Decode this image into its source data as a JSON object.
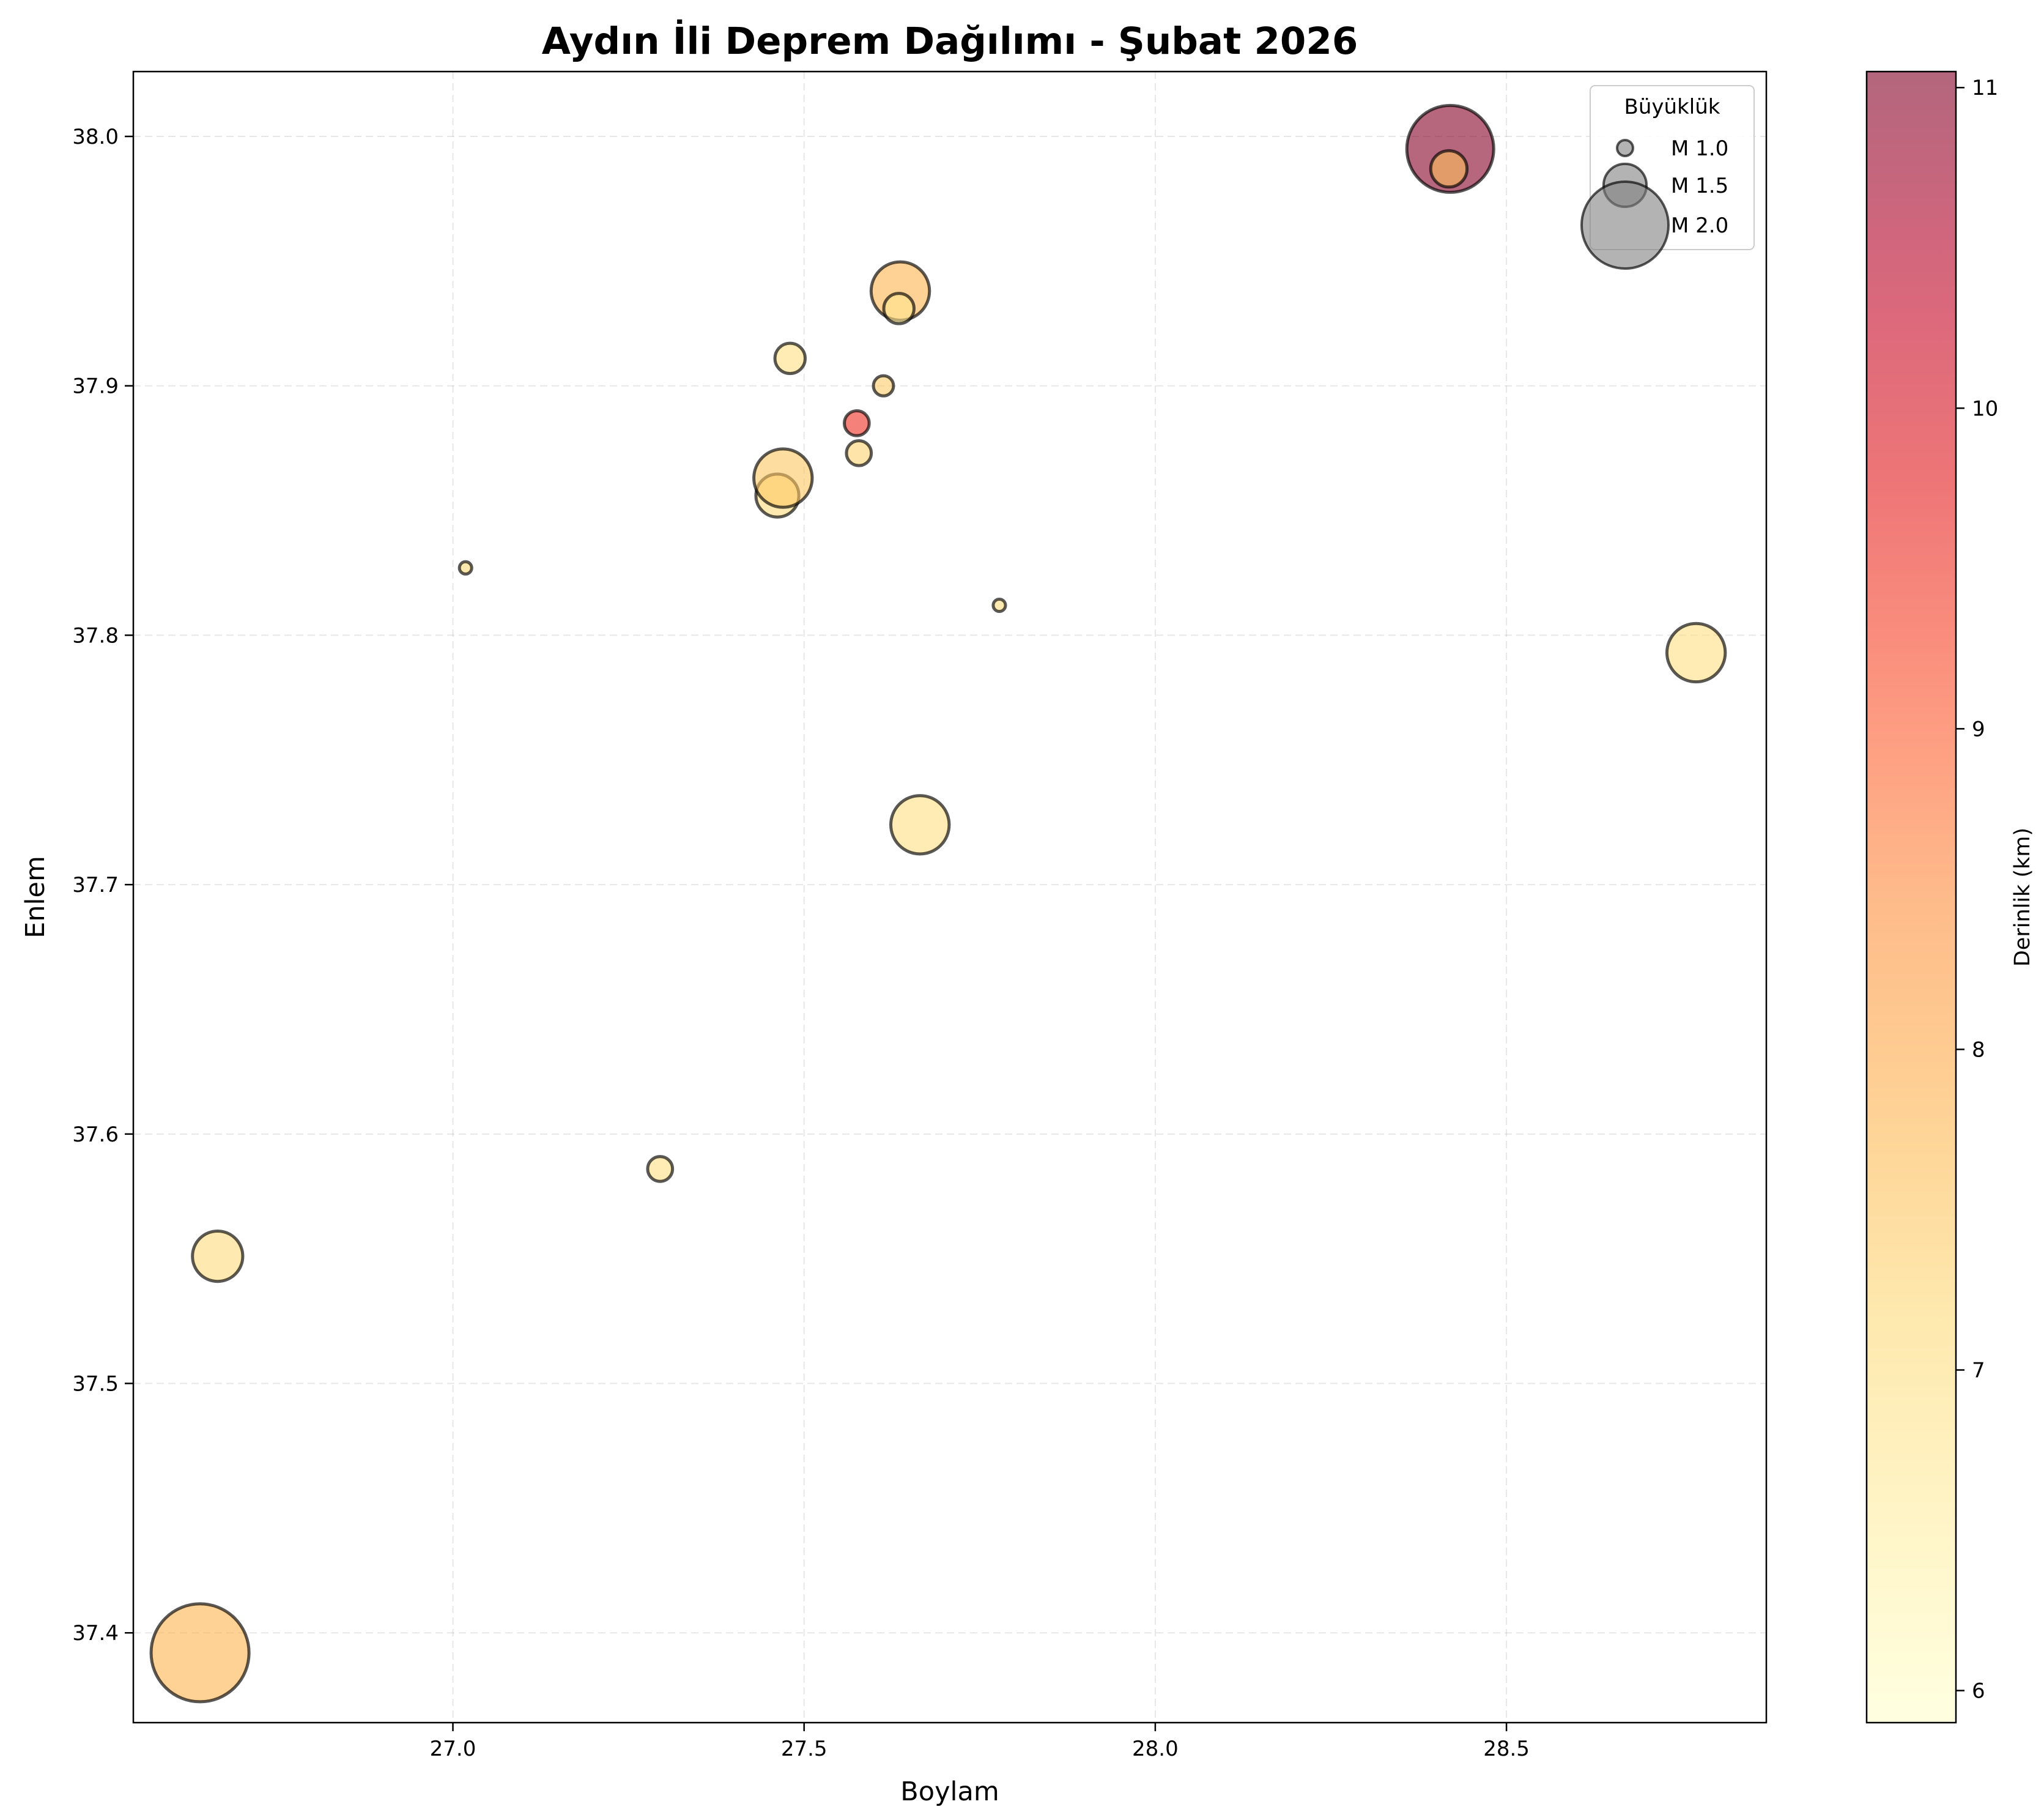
{
  "chart_data": {
    "type": "scatter",
    "title": "Aydın İli Deprem Dağılımı - Şubat 2026",
    "xlabel": "Boylam",
    "ylabel": "Enlem",
    "xlim": [
      26.545,
      28.87
    ],
    "ylim": [
      37.364,
      38.026
    ],
    "x_ticks": [
      {
        "value": 27.0,
        "label": "27.0"
      },
      {
        "value": 27.5,
        "label": "27.5"
      },
      {
        "value": 28.0,
        "label": "28.0"
      },
      {
        "value": 28.5,
        "label": "28.5"
      }
    ],
    "y_ticks": [
      {
        "value": 37.4,
        "label": "37.4"
      },
      {
        "value": 37.5,
        "label": "37.5"
      },
      {
        "value": 37.6,
        "label": "37.6"
      },
      {
        "value": 37.7,
        "label": "37.7"
      },
      {
        "value": 37.8,
        "label": "37.8"
      },
      {
        "value": 37.9,
        "label": "37.9"
      },
      {
        "value": 38.0,
        "label": "38.0"
      }
    ],
    "grid": true,
    "point_size_encoding": "magnitude",
    "point_color_encoding": "depth_km",
    "colormap": "YlOrRd",
    "marker_alpha": 0.6,
    "marker_edge_color": "#000000",
    "points": [
      {
        "lon": 26.64,
        "lat": 37.392,
        "magnitude": 2.1,
        "depth": 7.8
      },
      {
        "lon": 26.665,
        "lat": 37.551,
        "magnitude": 1.6,
        "depth": 7.1
      },
      {
        "lon": 27.295,
        "lat": 37.586,
        "magnitude": 1.2,
        "depth": 7.0
      },
      {
        "lon": 27.018,
        "lat": 37.827,
        "magnitude": 0.9,
        "depth": 7.2
      },
      {
        "lon": 27.462,
        "lat": 37.856,
        "magnitude": 1.5,
        "depth": 7.1
      },
      {
        "lon": 27.47,
        "lat": 37.863,
        "magnitude": 1.7,
        "depth": 7.5
      },
      {
        "lon": 27.48,
        "lat": 37.911,
        "magnitude": 1.3,
        "depth": 7.0
      },
      {
        "lon": 27.575,
        "lat": 37.885,
        "magnitude": 1.2,
        "depth": 9.5
      },
      {
        "lon": 27.578,
        "lat": 37.873,
        "magnitude": 1.2,
        "depth": 7.3
      },
      {
        "lon": 27.613,
        "lat": 37.9,
        "magnitude": 1.1,
        "depth": 7.4
      },
      {
        "lon": 27.637,
        "lat": 37.938,
        "magnitude": 1.7,
        "depth": 7.8
      },
      {
        "lon": 27.635,
        "lat": 37.931,
        "magnitude": 1.3,
        "depth": 6.8
      },
      {
        "lon": 27.665,
        "lat": 37.724,
        "magnitude": 1.7,
        "depth": 7.0
      },
      {
        "lon": 27.778,
        "lat": 37.812,
        "magnitude": 0.9,
        "depth": 7.1
      },
      {
        "lon": 28.42,
        "lat": 37.995,
        "magnitude": 2.0,
        "depth": 11.0
      },
      {
        "lon": 28.418,
        "lat": 37.987,
        "magnitude": 1.4,
        "depth": 7.6
      },
      {
        "lon": 28.77,
        "lat": 37.793,
        "magnitude": 1.7,
        "depth": 7.0
      }
    ],
    "legend": {
      "title": "Büyüklük",
      "placement": "top-right",
      "entries": [
        {
          "label": "M 1.0",
          "magnitude": 1.0
        },
        {
          "label": "M 1.5",
          "magnitude": 1.5
        },
        {
          "label": "M 2.0",
          "magnitude": 2.0
        }
      ]
    },
    "colorbar": {
      "label": "Derinlik (km)",
      "range": [
        5.9,
        11.05
      ],
      "ticks": [
        {
          "value": 6,
          "label": "6"
        },
        {
          "value": 7,
          "label": "7"
        },
        {
          "value": 8,
          "label": "8"
        },
        {
          "value": 9,
          "label": "9"
        },
        {
          "value": 10,
          "label": "10"
        },
        {
          "value": 11,
          "label": "11"
        }
      ]
    }
  }
}
